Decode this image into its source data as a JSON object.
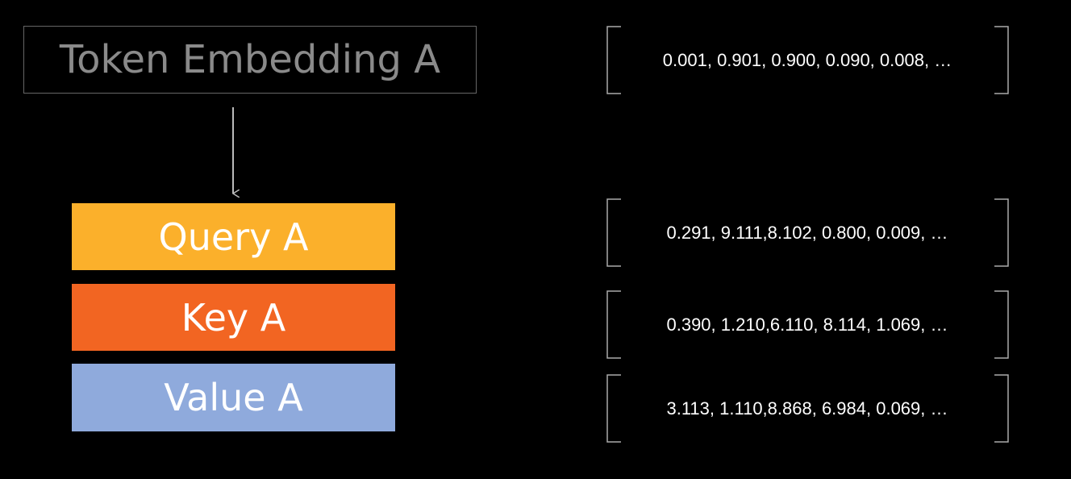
{
  "nodes": [
    {
      "label": "Token Embedding A"
    },
    {
      "label": "Query A"
    },
    {
      "label": "Key A"
    },
    {
      "label": "Value A"
    }
  ],
  "vectors": [
    "0.001, 0.901, 0.900, 0.090, 0.008, …",
    "0.291, 9.111,8.102, 0.800, 0.009, …",
    "0.390, 1.210,6.110, 8.114, 1.069, …",
    "3.113, 1.110,8.868, 6.984, 0.069, …"
  ]
}
